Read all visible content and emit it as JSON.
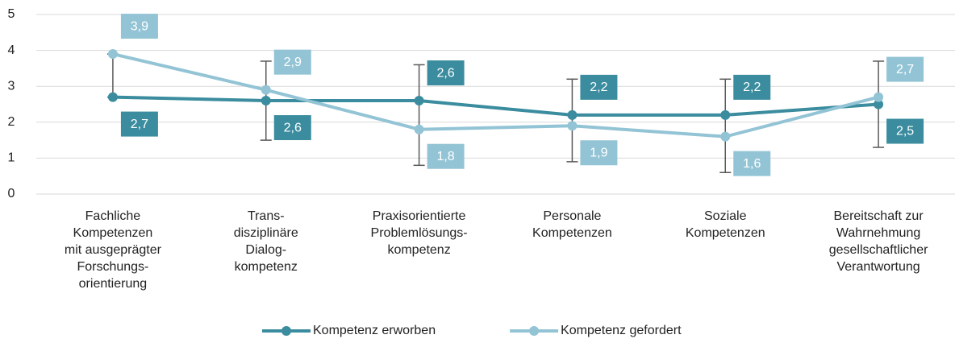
{
  "chart_data": {
    "type": "line",
    "categories": [
      "Fachliche\nKompetenzen\nmit ausgeprägter\nForschungs-\norientierung",
      "Trans-\ndisziplinäre\nDialog-\nkompetenz",
      "Praxisorientierte\nProblemlösungs-\nkompetenz",
      "Personale\nKompetenzen",
      "Soziale\nKompetenzen",
      "Bereitschaft zur\nWahrnehmung\ngesellschaftlicher\nVerantwortung"
    ],
    "series": [
      {
        "name": "Kompetenz erworben",
        "color": "#3a8c9e",
        "values": [
          2.7,
          2.6,
          2.6,
          2.2,
          2.2,
          2.5
        ],
        "value_labels": [
          "2,7",
          "2,6",
          "2,6",
          "2,2",
          "2,2",
          "2,5"
        ]
      },
      {
        "name": "Kompetenz gefordert",
        "color": "#93c4d5",
        "values": [
          3.9,
          2.9,
          1.8,
          1.9,
          1.6,
          2.7
        ],
        "value_labels": [
          "3,9",
          "2,9",
          "1,8",
          "1,9",
          "1,6",
          "2,7"
        ]
      }
    ],
    "error_bars": {
      "low": [
        2.7,
        1.5,
        0.8,
        0.9,
        0.6,
        1.3
      ],
      "high": [
        3.9,
        3.7,
        3.6,
        3.2,
        3.2,
        3.7
      ],
      "color": "#595959"
    },
    "ylim": [
      0,
      5
    ],
    "yticks": [
      0,
      1,
      2,
      3,
      4,
      5
    ],
    "grid": true,
    "legend": "bottom"
  }
}
